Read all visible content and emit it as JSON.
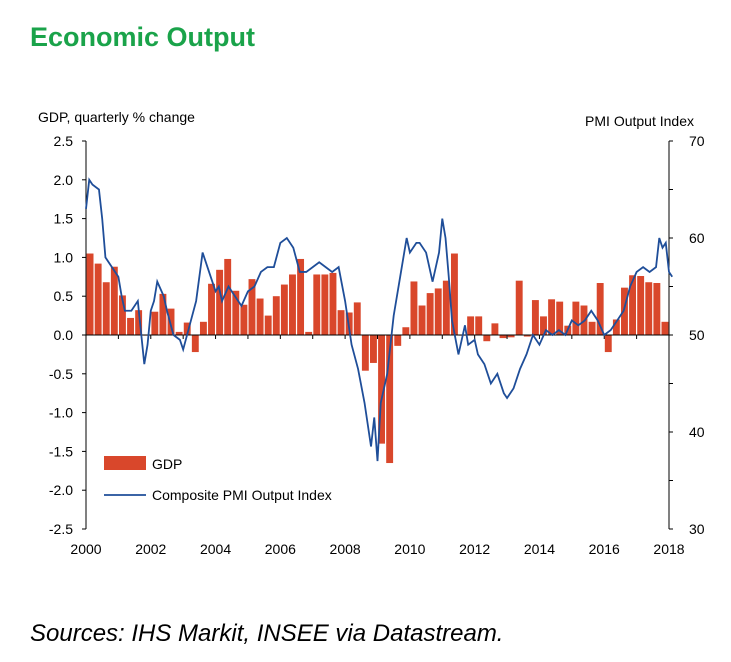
{
  "title": "Economic Output",
  "source": "Sources: IHS Markit, INSEE via Datastream.",
  "colors": {
    "title": "#1aa34a",
    "gdp_bar": "#d9472b",
    "pmi_line": "#1f4e99"
  },
  "chart_data": {
    "type": "bar",
    "ylabel_left": "GDP, quarterly % change",
    "ylabel_right": "PMI Output  Index",
    "ylim_left": [
      -2.5,
      2.5
    ],
    "ylim_right": [
      30,
      70
    ],
    "yticks_left": [
      "2.5",
      "2.0",
      "1.5",
      "1.0",
      "0.5",
      "0.0",
      "-0.5",
      "-1.0",
      "-1.5",
      "-2.0",
      "-2.5"
    ],
    "yticks_right": [
      "70",
      "60",
      "50",
      "40",
      "30"
    ],
    "xticks": [
      "2000",
      "2002",
      "2004",
      "2006",
      "2008",
      "2010",
      "2012",
      "2014",
      "2016",
      "2018"
    ],
    "xlim": [
      2000,
      2018
    ],
    "legend": [
      "GDP",
      "Composite PMI Output Index"
    ],
    "legend_position": "bottom-left",
    "series": [
      {
        "name": "GDP",
        "kind": "bar",
        "axis": "left",
        "values": [
          1.05,
          0.92,
          0.68,
          0.88,
          0.51,
          0.22,
          0.32,
          0.0,
          0.3,
          0.53,
          0.34,
          0.04,
          0.16,
          -0.22,
          0.17,
          0.66,
          0.84,
          0.98,
          0.57,
          0.39,
          0.72,
          0.47,
          0.25,
          0.5,
          0.65,
          0.78,
          0.98,
          0.04,
          0.78,
          0.78,
          0.8,
          0.32,
          0.29,
          0.42,
          -0.46,
          -0.36,
          -1.4,
          -1.65,
          -0.14,
          0.1,
          0.69,
          0.38,
          0.54,
          0.6,
          0.7,
          1.05,
          0.0,
          0.24,
          0.24,
          -0.08,
          0.15,
          -0.04,
          -0.03,
          0.7,
          -0.02,
          0.45,
          0.24,
          0.46,
          0.43,
          0.12,
          0.43,
          0.38,
          0.17,
          0.67,
          -0.22,
          0.2,
          0.61,
          0.77,
          0.76,
          0.68,
          0.67,
          0.17
        ],
        "x_start": 2000.0,
        "x_step": 0.25
      },
      {
        "name": "Composite PMI Output Index",
        "kind": "line",
        "axis": "right",
        "x": [
          2000.0,
          2000.1,
          2000.2,
          2000.4,
          2000.5,
          2000.6,
          2000.8,
          2000.9,
          2001.0,
          2001.1,
          2001.2,
          2001.4,
          2001.6,
          2001.8,
          2001.9,
          2002.0,
          2002.1,
          2002.2,
          2002.4,
          2002.5,
          2002.7,
          2002.9,
          2003.0,
          2003.2,
          2003.4,
          2003.5,
          2003.6,
          2003.8,
          2004.0,
          2004.1,
          2004.2,
          2004.4,
          2004.6,
          2004.8,
          2005.0,
          2005.2,
          2005.4,
          2005.6,
          2005.8,
          2006.0,
          2006.2,
          2006.4,
          2006.6,
          2006.8,
          2007.0,
          2007.2,
          2007.4,
          2007.6,
          2007.8,
          2008.0,
          2008.2,
          2008.4,
          2008.6,
          2008.8,
          2008.9,
          2009.0,
          2009.1,
          2009.3,
          2009.5,
          2009.7,
          2009.9,
          2010.0,
          2010.2,
          2010.3,
          2010.5,
          2010.7,
          2010.9,
          2011.0,
          2011.1,
          2011.2,
          2011.3,
          2011.5,
          2011.7,
          2011.8,
          2012.0,
          2012.1,
          2012.3,
          2012.5,
          2012.7,
          2012.9,
          2013.0,
          2013.2,
          2013.4,
          2013.6,
          2013.8,
          2014.0,
          2014.2,
          2014.4,
          2014.6,
          2014.8,
          2015.0,
          2015.2,
          2015.4,
          2015.6,
          2015.8,
          2016.0,
          2016.2,
          2016.4,
          2016.6,
          2016.8,
          2017.0,
          2017.2,
          2017.4,
          2017.6,
          2017.7,
          2017.8,
          2017.9,
          2018.0,
          2018.1
        ],
        "values": [
          63.0,
          66.0,
          65.5,
          65.0,
          62.0,
          58.0,
          57.0,
          56.5,
          56.0,
          54.0,
          52.5,
          52.5,
          53.5,
          47.0,
          49.0,
          52.5,
          53.5,
          55.5,
          54.0,
          52.5,
          50.0,
          49.5,
          48.5,
          51.0,
          53.5,
          56.0,
          58.5,
          56.5,
          54.5,
          55.0,
          53.5,
          55.0,
          54.0,
          53.0,
          54.5,
          55.0,
          56.5,
          57.0,
          57.0,
          59.5,
          60.0,
          59.0,
          56.5,
          56.5,
          57.0,
          57.5,
          57.0,
          56.5,
          57.0,
          53.5,
          49.0,
          46.5,
          43.0,
          38.5,
          41.5,
          37.0,
          43.0,
          46.0,
          52.0,
          56.0,
          60.0,
          58.5,
          59.5,
          59.5,
          58.5,
          55.5,
          58.5,
          62.0,
          60.0,
          56.0,
          51.5,
          48.0,
          51.0,
          49.0,
          49.5,
          48.0,
          47.0,
          45.0,
          46.0,
          44.0,
          43.5,
          44.5,
          46.5,
          48.0,
          50.0,
          49.0,
          50.5,
          50.0,
          50.5,
          50.0,
          51.5,
          51.0,
          51.5,
          52.5,
          51.5,
          50.0,
          50.5,
          51.5,
          52.5,
          55.0,
          56.5,
          57.0,
          56.5,
          57.0,
          60.0,
          59.0,
          59.5,
          56.5,
          56.0
        ]
      }
    ]
  }
}
